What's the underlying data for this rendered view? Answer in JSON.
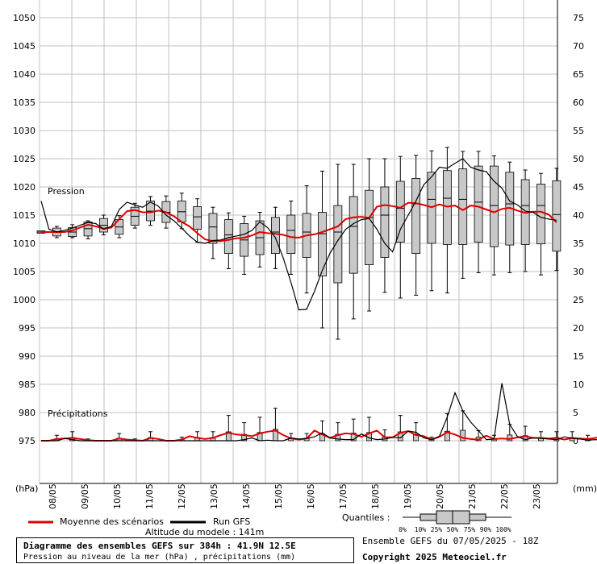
{
  "chart_data": {
    "type": "box",
    "title": "Diagramme des ensembles GEFS sur 384h : 41.9N 12.5E",
    "subtitle": "Pression au niveau de la mer (hPa) , précipitations (mm)",
    "left_axis": {
      "unit": "(hPa)",
      "ticks": [
        975,
        980,
        985,
        990,
        995,
        1000,
        1005,
        1010,
        1015,
        1020,
        1025,
        1030,
        1035,
        1040,
        1045,
        1050
      ],
      "ylim": [
        975,
        1050
      ]
    },
    "right_axis": {
      "unit": "(mm)",
      "ticks": [
        0,
        5,
        10,
        15,
        20,
        25,
        30,
        35,
        40,
        45,
        50,
        55,
        60,
        65,
        70,
        75
      ],
      "ylim": [
        0,
        75
      ]
    },
    "x_labels": [
      "08/05",
      "09/05",
      "10/05",
      "11/05",
      "12/05",
      "13/05",
      "14/05",
      "15/05",
      "16/05",
      "17/05",
      "18/05",
      "19/05",
      "20/05",
      "21/05",
      "22/05",
      "23/05"
    ],
    "grid": true,
    "annotations": {
      "pressure": "Pression",
      "precip": "Précipitations"
    },
    "series": [
      {
        "name": "Moyenne des scénarios",
        "color": "#e00000"
      },
      {
        "name": "Run GFS",
        "color": "#000000"
      }
    ],
    "pressure": {
      "mean": [
        1012,
        1012,
        1012,
        1012,
        1012.3,
        1012.8,
        1013.3,
        1013,
        1012.6,
        1012.8,
        1014.3,
        1015.7,
        1015.9,
        1015.5,
        1015.5,
        1015.8,
        1015.5,
        1014.8,
        1013.8,
        1013,
        1011.8,
        1010.7,
        1010.4,
        1010.4,
        1010.6,
        1010.9,
        1011,
        1011.4,
        1012,
        1011.8,
        1011.7,
        1011.5,
        1011.1,
        1011,
        1011.4,
        1011.6,
        1012,
        1012.5,
        1013,
        1014.3,
        1014.6,
        1014.7,
        1014.5,
        1016.5,
        1016.8,
        1016.6,
        1016.3,
        1017.2,
        1017.1,
        1016.8,
        1016.4,
        1016.9,
        1016.5,
        1016.7,
        1015.9,
        1016.7,
        1016.5,
        1016,
        1015.5,
        1016.1,
        1016.3,
        1015.8,
        1015.4,
        1015.6,
        1015.6,
        1015.1,
        1013.7
      ],
      "gfs": [
        1017.5,
        1012.5,
        1012,
        1012.3,
        1012.7,
        1013.2,
        1013.7,
        1013.5,
        1012.5,
        1013,
        1016,
        1017.3,
        1016.8,
        1016.4,
        1017.3,
        1016.6,
        1015,
        1014,
        1012.7,
        1011.3,
        1010.2,
        1010,
        1010.5,
        1010.6,
        1011,
        1011.3,
        1011.6,
        1012.3,
        1013.8,
        1012.8,
        1011,
        1007.4,
        1003,
        998.2,
        998.3,
        1001.5,
        1005.2,
        1008.3,
        1010.5,
        1012.5,
        1013.5,
        1014.2,
        1014.4,
        1012.5,
        1010,
        1008.5,
        1012.5,
        1015,
        1017.5,
        1020.4,
        1021.8,
        1023.5,
        1023.3,
        1024.2,
        1025,
        1023.5,
        1023,
        1022.7,
        1021,
        1019.8,
        1017.5,
        1016.8,
        1015.7,
        1015.5,
        1014.6,
        1014.3,
        1014.1
      ],
      "box_steps": [
        0,
        2,
        4,
        6,
        8,
        10,
        12,
        14,
        16,
        18,
        20,
        22,
        24,
        26,
        28,
        30,
        32,
        34,
        36,
        38,
        40,
        42,
        44,
        46,
        48,
        50,
        52,
        54,
        56,
        58,
        60,
        62,
        64,
        66
      ],
      "box_q": [
        [
          1011.8,
          1011.9,
          1012,
          1012.1,
          1012.2
        ],
        [
          1011.3,
          1011.7,
          1012,
          1012.3,
          1012.7
        ],
        [
          1011.2,
          1011.6,
          1012,
          1012.4,
          1012.8
        ],
        [
          1011.3,
          1012,
          1012.6,
          1013.2,
          1013.8
        ],
        [
          1012,
          1012.6,
          1013.2,
          1013.8,
          1014.4
        ],
        [
          1011.6,
          1012.3,
          1012.9,
          1013.5,
          1014.2
        ],
        [
          1013.2,
          1014.2,
          1014.8,
          1015.5,
          1016.4
        ],
        [
          1014,
          1015,
          1015.7,
          1016.5,
          1017.5
        ],
        [
          1013.7,
          1014.8,
          1015.5,
          1016.3,
          1017.4
        ],
        [
          1013.8,
          1015,
          1015.6,
          1016.4,
          1017.5
        ],
        [
          1012.5,
          1013.5,
          1014.7,
          1015.4,
          1016.5
        ],
        [
          1010,
          1011.2,
          1012.9,
          1014,
          1015.3
        ],
        [
          1008.2,
          1009.5,
          1011.5,
          1012.6,
          1014.2
        ],
        [
          1007.7,
          1008.9,
          1010.6,
          1012.4,
          1013.5
        ],
        [
          1008,
          1009.3,
          1011,
          1012.5,
          1014
        ],
        [
          1008.2,
          1009.8,
          1012,
          1013,
          1014.6
        ],
        [
          1008.2,
          1010,
          1012.3,
          1013.8,
          1015
        ],
        [
          1007.5,
          1009.5,
          1012,
          1014.2,
          1015.3
        ],
        [
          1004.2,
          1007.5,
          1011.7,
          1014.3,
          1015.5
        ],
        [
          1003,
          1006.3,
          1012,
          1014.2,
          1016.7
        ],
        [
          1004.7,
          1008.2,
          1013,
          1015.6,
          1018.3
        ],
        [
          1006.2,
          1009,
          1014.6,
          1016.7,
          1019.4
        ],
        [
          1007.5,
          1011,
          1015,
          1018.2,
          1020
        ],
        [
          1010.2,
          1012.5,
          1016.2,
          1018.2,
          1021
        ],
        [
          1008.2,
          1012.2,
          1017,
          1019.4,
          1021.5
        ],
        [
          1010,
          1013.6,
          1017.8,
          1020.5,
          1022.6
        ],
        [
          1009.8,
          1013.2,
          1018,
          1021,
          1022.9
        ],
        [
          1009.8,
          1012.5,
          1017.8,
          1020.9,
          1023.2
        ],
        [
          1010.2,
          1013.3,
          1017.3,
          1020.3,
          1023.7
        ],
        [
          1009.4,
          1012.8,
          1016.7,
          1020.7,
          1023.7
        ],
        [
          1009.7,
          1012.8,
          1017,
          1020.3,
          1022.6
        ],
        [
          1009.8,
          1012.7,
          1016.7,
          1019.4,
          1021.3
        ],
        [
          1009.9,
          1012.6,
          1016.7,
          1019.2,
          1020.5
        ],
        [
          1008.6,
          1011.6,
          1015.1,
          1017.7,
          1021.1
        ]
      ],
      "whiskers": [
        [
          1012,
          1012
        ],
        [
          1011,
          1013
        ],
        [
          1011,
          1013.3
        ],
        [
          1010.8,
          1014
        ],
        [
          1011.5,
          1015
        ],
        [
          1011,
          1014.9
        ],
        [
          1012.7,
          1017.1
        ],
        [
          1013.2,
          1018.3
        ],
        [
          1012.7,
          1018.4
        ],
        [
          1012.6,
          1018.9
        ],
        [
          1010.2,
          1017.9
        ],
        [
          1007.3,
          1016.4
        ],
        [
          1005.5,
          1015.4
        ],
        [
          1004.5,
          1014.8
        ],
        [
          1005.8,
          1015.5
        ],
        [
          1005.5,
          1016.4
        ],
        [
          1004.5,
          1017.5
        ],
        [
          1001.2,
          1020.2
        ],
        [
          995,
          1022.8
        ],
        [
          993,
          1024
        ],
        [
          996.6,
          1024
        ],
        [
          998,
          1025
        ],
        [
          1001.3,
          1025
        ],
        [
          1000.3,
          1025.4
        ],
        [
          1000.8,
          1025.6
        ],
        [
          1001.6,
          1026.4
        ],
        [
          1001.2,
          1027
        ],
        [
          1003.8,
          1026.3
        ],
        [
          1004.8,
          1026.3
        ],
        [
          1004.4,
          1025.5
        ],
        [
          1004.8,
          1024.4
        ],
        [
          1005,
          1023
        ],
        [
          1004.4,
          1022.4
        ],
        [
          1005.2,
          1023.3
        ]
      ]
    },
    "precip": {
      "mean": [
        0,
        0,
        0.3,
        0.4,
        0.5,
        0.3,
        0.1,
        0,
        0,
        0,
        0.4,
        0.2,
        0.1,
        0,
        0.5,
        0.3,
        0,
        0,
        0.2,
        0.8,
        0.5,
        0.3,
        0.5,
        1,
        1.4,
        1.1,
        1,
        0.8,
        1.3,
        1.6,
        1.8,
        1,
        0.4,
        0.2,
        0.4,
        1.8,
        1.1,
        0.5,
        1,
        1.3,
        1.2,
        0.7,
        1.3,
        1.8,
        0.6,
        0.6,
        1.4,
        1.7,
        1,
        0.8,
        0.2,
        0.7,
        1.5,
        1.1,
        0.5,
        0.3,
        0.2,
        0.9,
        0.3,
        0.4,
        0.3,
        0.6,
        0.8,
        0.5,
        0.5,
        0.4,
        0.5,
        0.2,
        0.5,
        0.4,
        0.3,
        0.5,
        0.8,
        1.2,
        0.7,
        0.5,
        0.3,
        0.2,
        0.5,
        0.2,
        0.3,
        0.4,
        0.7,
        0.3,
        0.5,
        0.7,
        0.5
      ],
      "gfs": [
        0,
        0,
        0,
        0.4,
        0.2,
        0,
        0,
        0,
        0,
        0,
        0,
        0,
        0,
        0,
        0,
        0,
        0,
        0,
        0,
        0,
        0,
        0,
        0,
        0,
        0,
        0,
        0.2,
        0.5,
        0,
        0.1,
        0,
        0,
        0.5,
        0.3,
        0.4,
        0.7,
        1.4,
        0.5,
        0.3,
        0.2,
        0.2,
        1.2,
        0.5,
        0.2,
        0.3,
        0.6,
        0.5,
        1.7,
        1.5,
        0.5,
        0.2,
        0.8,
        4.2,
        8.5,
        5.3,
        3.3,
        1.8,
        0.2,
        0.3,
        10.2,
        2.9,
        0.7,
        0.2,
        0.5,
        0.4,
        0.3,
        0.2,
        0.7,
        0.4,
        0.3,
        0.1,
        0.2,
        0.1,
        0.1,
        0.1,
        0.1,
        0.3,
        0.2,
        0.3,
        0.5,
        1.2,
        4.5,
        7.5,
        3.1,
        0.8,
        0.2,
        0.1
      ]
    },
    "quantiles_legend": {
      "label": "Quantiles :",
      "steps": [
        "0%",
        "10%",
        "25%",
        "50%",
        "75%",
        "90%",
        "100%"
      ]
    },
    "model_altitude": "Altitude du modele : 141m",
    "ensemble_run": "Ensemble GEFS du 07/05/2025 - 18Z",
    "copyright": "Copyright 2025 Meteociel.fr"
  }
}
